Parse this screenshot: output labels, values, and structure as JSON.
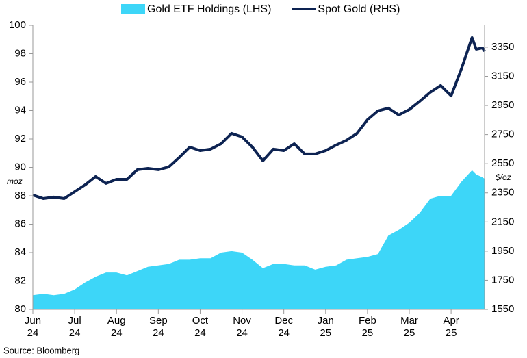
{
  "chart_data": {
    "type": "line",
    "x": [
      0,
      0.25,
      0.5,
      0.75,
      1,
      1.25,
      1.5,
      1.75,
      2,
      2.25,
      2.5,
      2.75,
      3,
      3.25,
      3.5,
      3.75,
      4,
      4.25,
      4.5,
      4.75,
      5,
      5.25,
      5.5,
      5.75,
      6,
      6.25,
      6.5,
      6.75,
      7,
      7.25,
      7.5,
      7.75,
      8,
      8.25,
      8.5,
      8.75,
      9,
      9.25,
      9.5,
      9.75,
      10,
      10.25,
      10.5,
      10.6,
      10.75,
      10.8
    ],
    "xlim": [
      0,
      10.8
    ],
    "xticks": [
      {
        "value": 0,
        "label": "Jun 24"
      },
      {
        "value": 1,
        "label": "Jul 24"
      },
      {
        "value": 2,
        "label": "Aug 24"
      },
      {
        "value": 3,
        "label": "Sep 24"
      },
      {
        "value": 4,
        "label": "Oct 24"
      },
      {
        "value": 5,
        "label": "Nov 24"
      },
      {
        "value": 6,
        "label": "Dec 24"
      },
      {
        "value": 7,
        "label": "Jan 25"
      },
      {
        "value": 8,
        "label": "Feb 25"
      },
      {
        "value": 9,
        "label": "Mar 25"
      },
      {
        "value": 10,
        "label": "Apr 25"
      }
    ],
    "ylim": [
      80,
      100
    ],
    "yticks": [
      80,
      82,
      84,
      86,
      88,
      90,
      92,
      94,
      96,
      98,
      100
    ],
    "y_label": "moz",
    "y2lim": [
      1550,
      3500
    ],
    "y2ticks": [
      1550,
      1750,
      1950,
      2150,
      2350,
      2550,
      2750,
      2950,
      3150,
      3350
    ],
    "y2_label": "$/oz",
    "series": [
      {
        "name": "Gold ETF Holdings (LHS)",
        "kind": "area",
        "color": "#3dd6f8",
        "values": [
          81.0,
          81.1,
          81.0,
          81.1,
          81.4,
          81.9,
          82.3,
          82.6,
          82.6,
          82.4,
          82.7,
          83.0,
          83.1,
          83.2,
          83.5,
          83.5,
          83.6,
          83.6,
          84.0,
          84.1,
          84.0,
          83.5,
          82.9,
          83.2,
          83.2,
          83.1,
          83.1,
          82.8,
          83.0,
          83.1,
          83.5,
          83.6,
          83.7,
          83.9,
          85.2,
          85.6,
          86.1,
          86.8,
          87.8,
          88.0,
          88.0,
          89.0,
          89.8,
          89.5,
          89.3,
          89.2
        ]
      },
      {
        "name": "Spot Gold (RHS)",
        "kind": "line",
        "axis": "y2",
        "color": "#0d2352",
        "values": [
          2335,
          2311,
          2321,
          2311,
          2358,
          2405,
          2462,
          2415,
          2443,
          2443,
          2509,
          2518,
          2509,
          2528,
          2593,
          2664,
          2640,
          2650,
          2687,
          2758,
          2734,
          2664,
          2570,
          2650,
          2640,
          2687,
          2617,
          2617,
          2640,
          2678,
          2711,
          2758,
          2852,
          2913,
          2932,
          2885,
          2922,
          2979,
          3040,
          3087,
          3016,
          3204,
          3416,
          3336,
          3345,
          3322
        ]
      }
    ],
    "source": "Source: Bloomberg"
  }
}
